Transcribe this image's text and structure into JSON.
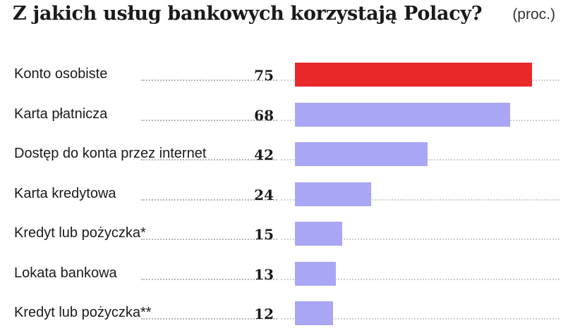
{
  "title": "Z jakich usług bankowych korzystają Polacy?",
  "unit": "(proc.)",
  "colors": {
    "highlight": "#e8282b",
    "bar": "#a9a6f5"
  },
  "chart_data": {
    "type": "bar",
    "orientation": "horizontal",
    "title": "Z jakich usług bankowych korzystają Polacy?",
    "ylabel": "(proc.)",
    "categories": [
      "Konto osobiste",
      "Karta płatnicza",
      "Dostęp do konta przez internet",
      "Karta kredytowa",
      "Kredyt lub pożyczka*",
      "Lokata bankowa",
      "Kredyt lub pożyczka**"
    ],
    "values": [
      75,
      68,
      42,
      24,
      15,
      13,
      12
    ],
    "highlight_index": 0,
    "xlim": [
      0,
      75
    ]
  }
}
